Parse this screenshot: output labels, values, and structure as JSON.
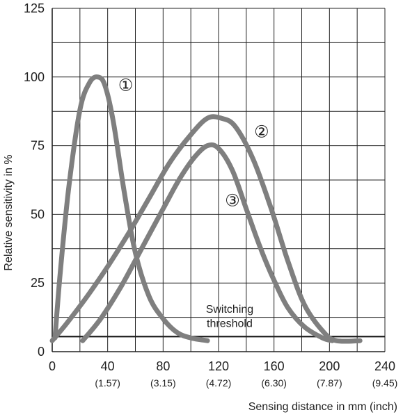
{
  "chart_data": {
    "type": "line",
    "xlabel": "Sensing distance in mm (inch)",
    "ylabel": "Relative sensitivity in %",
    "xlim": [
      0,
      240
    ],
    "ylim": [
      0,
      125
    ],
    "grid": true,
    "x_ticks": [
      {
        "value": 0,
        "label": "0",
        "sub": ""
      },
      {
        "value": 40,
        "label": "40",
        "sub": "(1.57)"
      },
      {
        "value": 80,
        "label": "80",
        "sub": "(3.15)"
      },
      {
        "value": 120,
        "label": "120",
        "sub": "(4.72)"
      },
      {
        "value": 160,
        "label": "160",
        "sub": "(6.30)"
      },
      {
        "value": 200,
        "label": "200",
        "sub": "(7.87)"
      },
      {
        "value": 240,
        "label": "240",
        "sub": "(9.45)"
      }
    ],
    "y_ticks": [
      {
        "value": 0,
        "label": "0"
      },
      {
        "value": 25,
        "label": "25"
      },
      {
        "value": 50,
        "label": "50"
      },
      {
        "value": 75,
        "label": "75"
      },
      {
        "value": 100,
        "label": "100"
      },
      {
        "value": 125,
        "label": "125"
      }
    ],
    "threshold": {
      "value": 5.5,
      "label_line1": "Switching",
      "label_line2": "threshold"
    },
    "series": [
      {
        "name": "①",
        "label_anchor": [
          53,
          95
        ],
        "points": [
          [
            2,
            5
          ],
          [
            6,
            30
          ],
          [
            12,
            60
          ],
          [
            20,
            88
          ],
          [
            27,
            98
          ],
          [
            33,
            100
          ],
          [
            38,
            97
          ],
          [
            44,
            84
          ],
          [
            52,
            58
          ],
          [
            60,
            36
          ],
          [
            70,
            20
          ],
          [
            80,
            12
          ],
          [
            90,
            7
          ],
          [
            100,
            5
          ],
          [
            112,
            4
          ]
        ]
      },
      {
        "name": "②",
        "label_anchor": [
          151,
          78
        ],
        "points": [
          [
            0,
            4
          ],
          [
            10,
            10
          ],
          [
            25,
            20
          ],
          [
            40,
            31
          ],
          [
            55,
            43
          ],
          [
            70,
            56
          ],
          [
            85,
            69
          ],
          [
            100,
            79
          ],
          [
            112,
            85
          ],
          [
            122,
            85
          ],
          [
            132,
            82
          ],
          [
            145,
            70
          ],
          [
            158,
            52
          ],
          [
            170,
            33
          ],
          [
            182,
            17
          ],
          [
            196,
            7
          ],
          [
            205,
            4
          ],
          [
            222,
            4
          ]
        ]
      },
      {
        "name": "③",
        "label_anchor": [
          130,
          53
        ],
        "points": [
          [
            22,
            4
          ],
          [
            35,
            12
          ],
          [
            50,
            24
          ],
          [
            65,
            38
          ],
          [
            80,
            52
          ],
          [
            92,
            63
          ],
          [
            103,
            71
          ],
          [
            112,
            75
          ],
          [
            120,
            74
          ],
          [
            130,
            66
          ],
          [
            140,
            52
          ],
          [
            150,
            38
          ],
          [
            160,
            26
          ],
          [
            170,
            16
          ],
          [
            182,
            9
          ],
          [
            195,
            5
          ],
          [
            202,
            4
          ]
        ]
      }
    ],
    "colors": {
      "curve": "#7f7f7f",
      "grid": "#222222",
      "threshold": "#1e1e1e"
    }
  }
}
